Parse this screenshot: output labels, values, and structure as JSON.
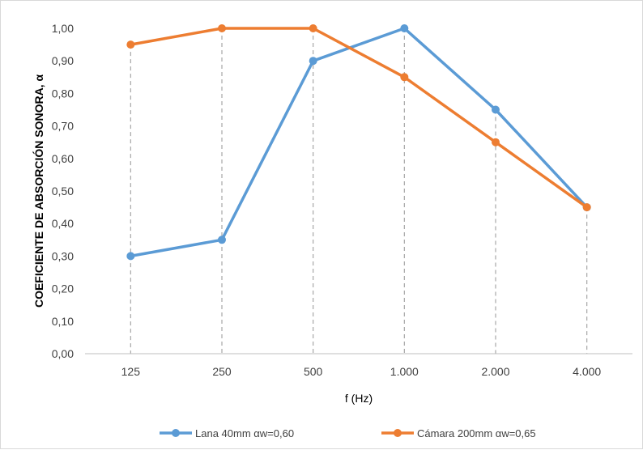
{
  "chart_data": {
    "type": "line",
    "title": "",
    "xlabel": "f (Hz)",
    "ylabel": "COEFICIENTE DE ABSORCIÓN SONORA, α",
    "categories": [
      "125",
      "250",
      "500",
      "1.000",
      "2.000",
      "4.000"
    ],
    "y_ticks": [
      "0,00",
      "0,10",
      "0,20",
      "0,30",
      "0,40",
      "0,50",
      "0,60",
      "0,70",
      "0,80",
      "0,90",
      "1,00"
    ],
    "ylim": [
      0,
      1
    ],
    "grid": "vertical dashed drop lines at categories",
    "legend_position": "bottom",
    "series": [
      {
        "name": "Lana 40mm  αw=0,60",
        "color": "#5b9bd5",
        "values": [
          0.3,
          0.35,
          0.9,
          1.0,
          0.75,
          0.45
        ]
      },
      {
        "name": "Cámara 200mm  αw=0,65",
        "color": "#ed7d31",
        "values": [
          0.95,
          1.0,
          1.0,
          0.85,
          0.65,
          0.45
        ]
      }
    ]
  }
}
